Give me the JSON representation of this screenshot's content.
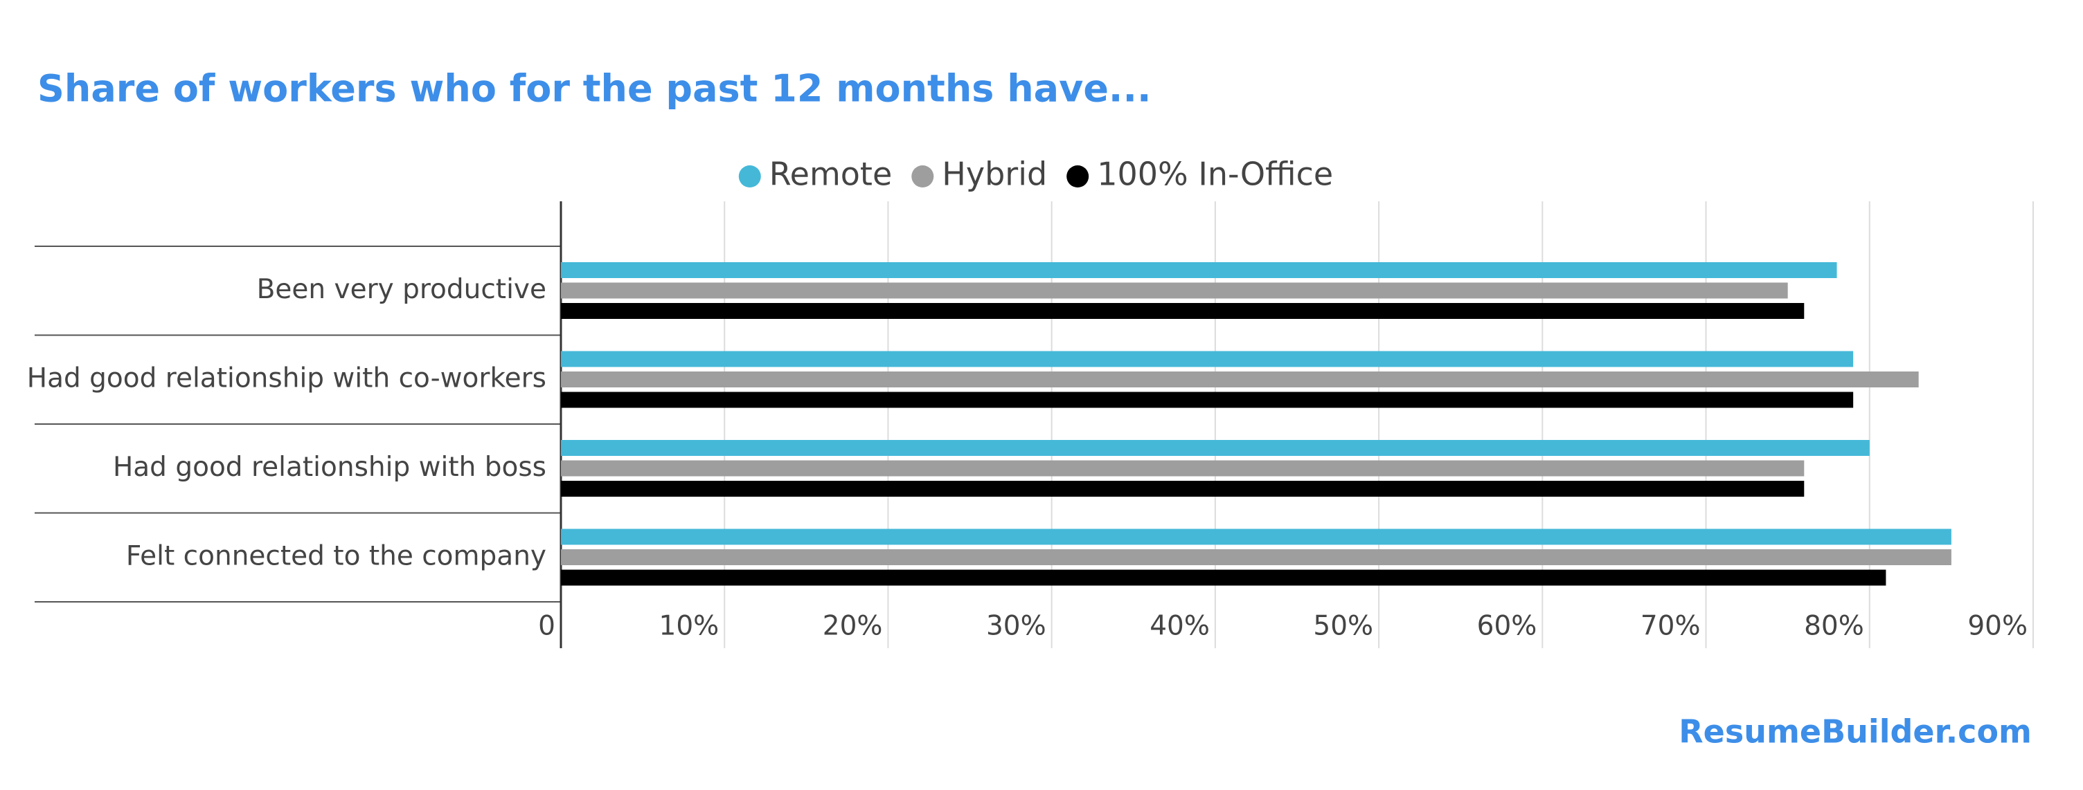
{
  "chart_data": {
    "type": "hbar",
    "title": "Share of workers who for the past 12 months have...",
    "source": "ResumeBuilder.com",
    "categories": [
      "Been very productive",
      "Had good relationship with co-workers",
      "Had good relationship with boss",
      "Felt connected to the company"
    ],
    "series": [
      {
        "name": "Remote",
        "color": "#45b8d8",
        "values": [
          78,
          79,
          80,
          85
        ]
      },
      {
        "name": "Hybrid",
        "color": "#9e9e9e",
        "values": [
          75,
          83,
          76,
          85
        ]
      },
      {
        "name": "100% In-Office",
        "color": "#000000",
        "values": [
          76,
          79,
          76,
          81
        ]
      }
    ],
    "xlim": [
      0,
      90
    ],
    "xticks": [
      0,
      {
        "value": 10,
        "label": "10%"
      },
      {
        "value": 20,
        "label": "20%"
      },
      {
        "value": 30,
        "label": "30%"
      },
      {
        "value": 40,
        "label": "40%"
      },
      {
        "value": 50,
        "label": "50%"
      },
      {
        "value": 60,
        "label": "60%"
      },
      {
        "value": 70,
        "label": "70%"
      },
      {
        "value": 80,
        "label": "80%"
      },
      {
        "value": 90,
        "label": "90%"
      }
    ],
    "grid": true,
    "legend": "top"
  }
}
